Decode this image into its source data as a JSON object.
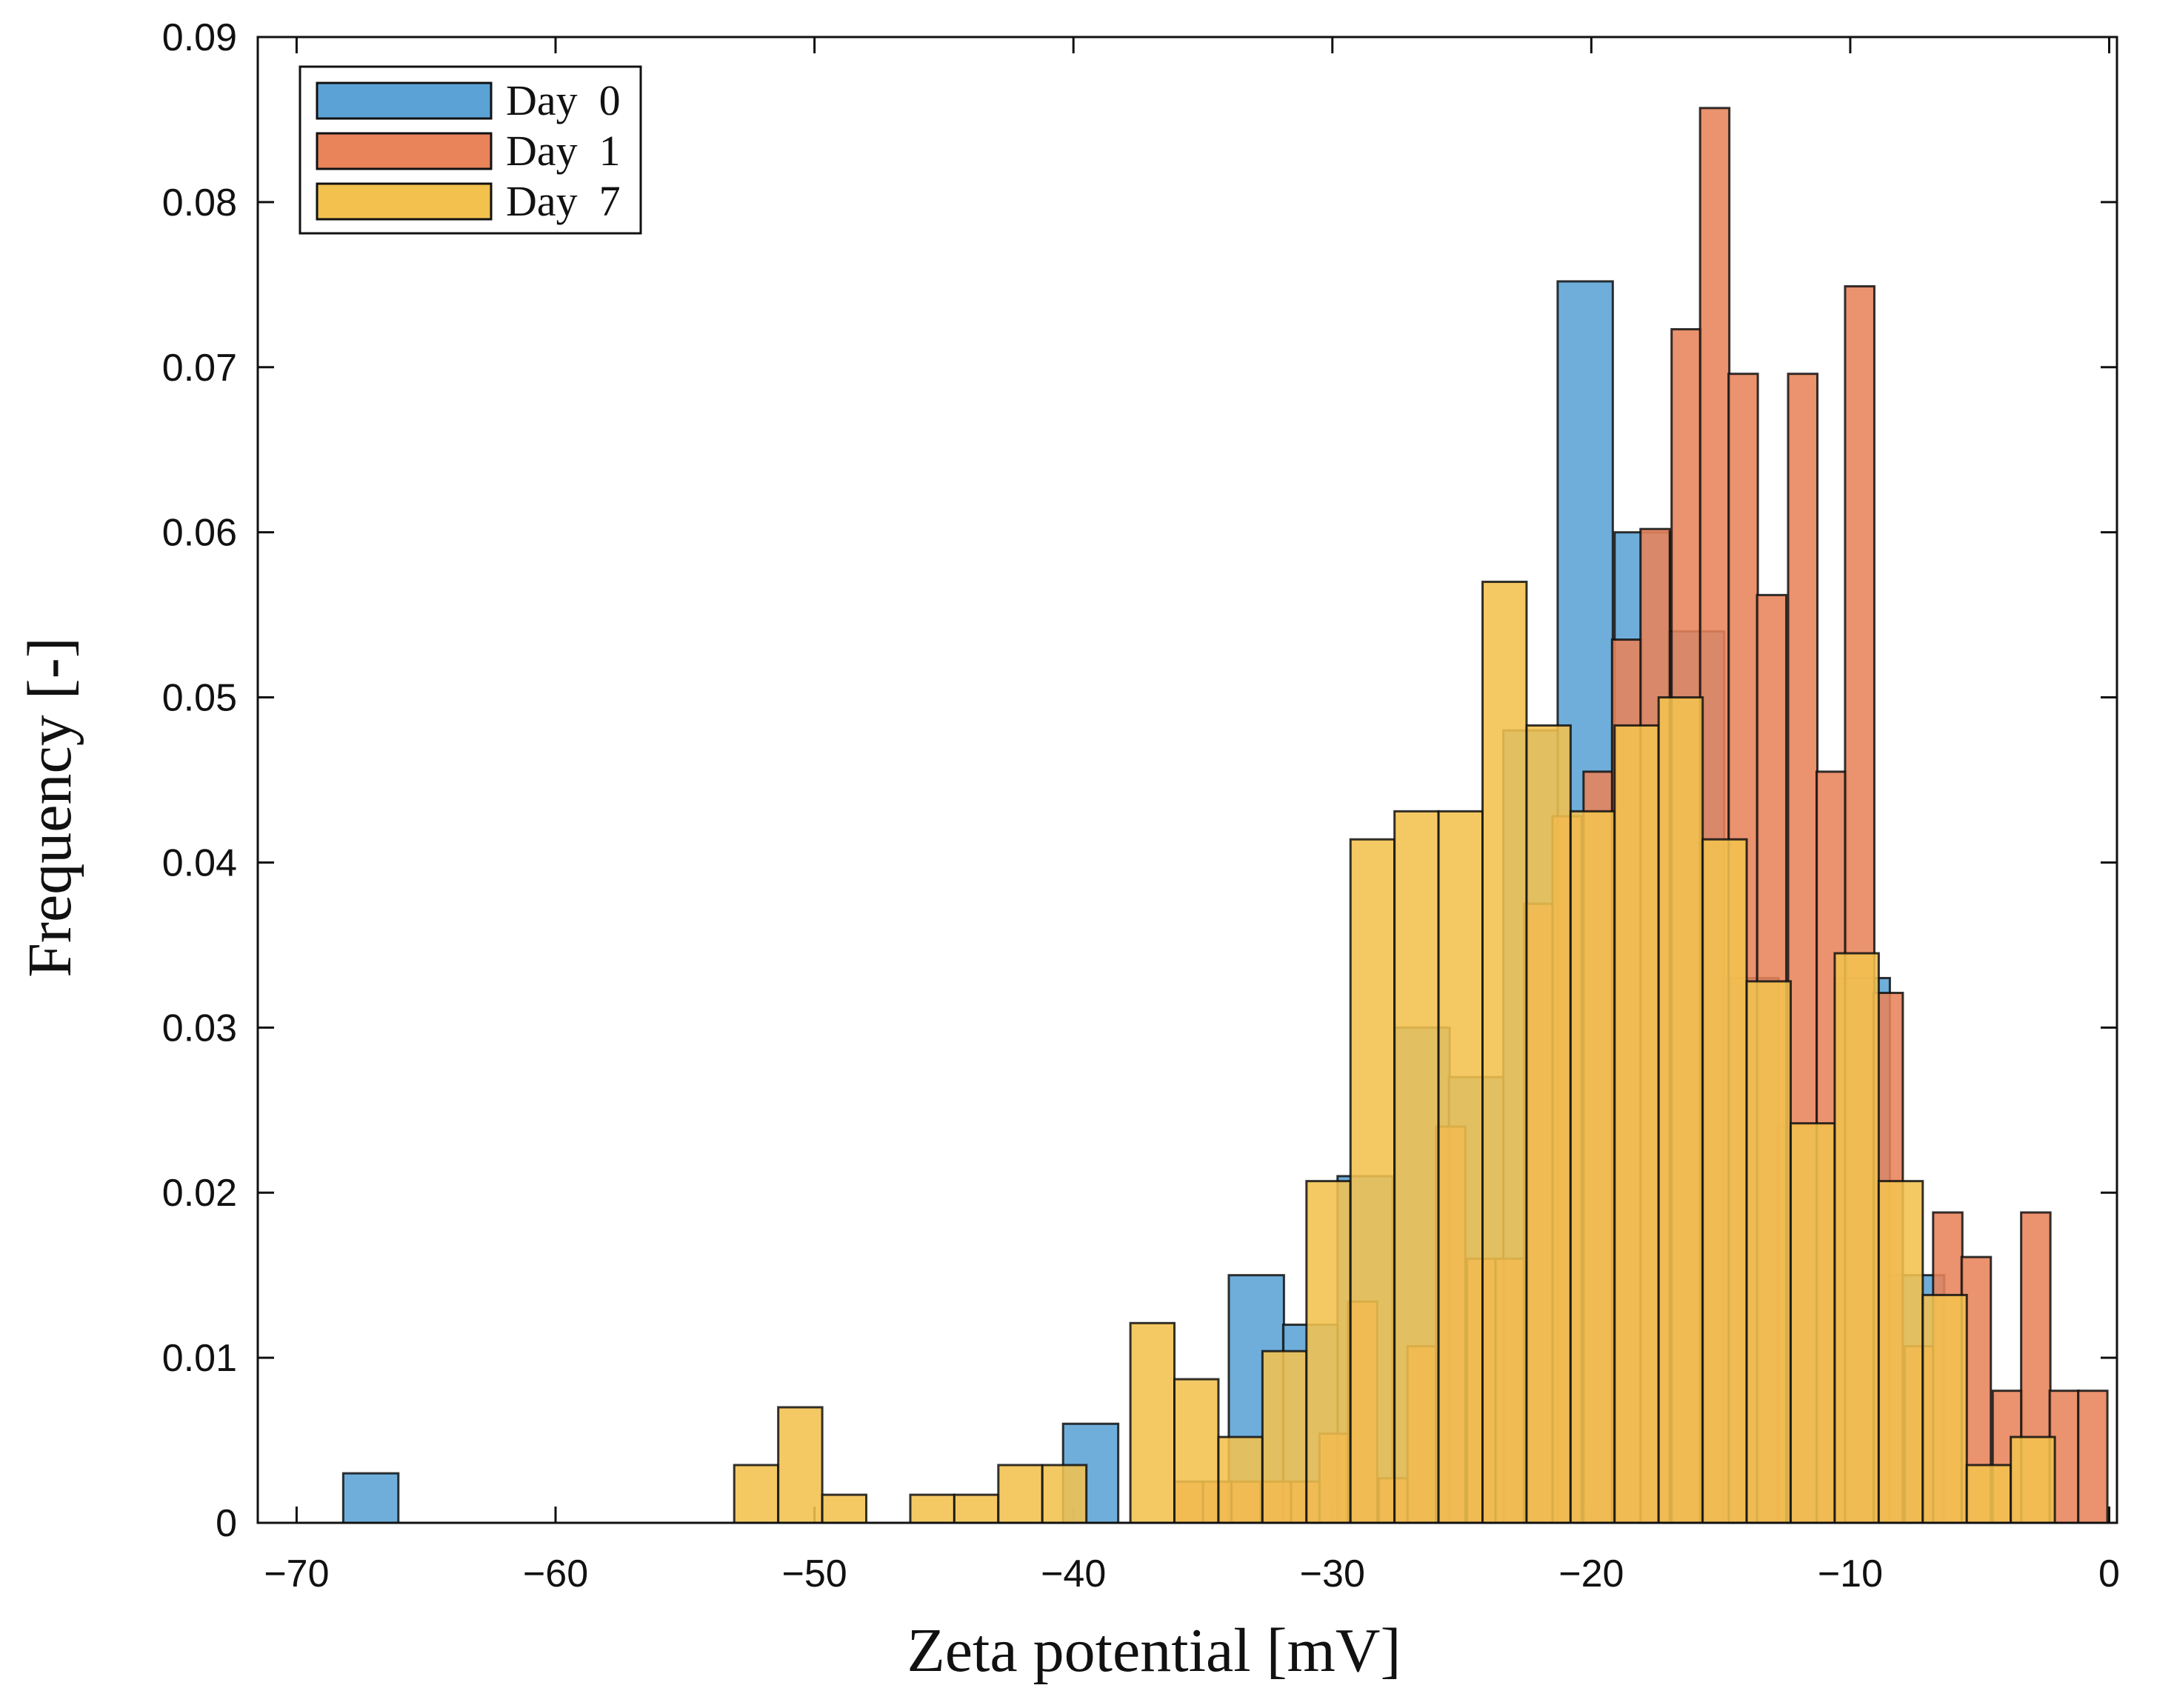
{
  "chart_data": {
    "type": "histogram",
    "xlabel": "Zeta potential [mV]",
    "ylabel": "Frequency [-]",
    "xlim": [
      -71.5,
      0.3
    ],
    "ylim": [
      0,
      0.09
    ],
    "xticks": [
      -70,
      -60,
      -50,
      -40,
      -30,
      -20,
      -10,
      0
    ],
    "xtick_labels": [
      "−70",
      "−60",
      "−50",
      "−40",
      "−30",
      "−20",
      "−10",
      "0"
    ],
    "yticks": [
      0,
      0.01,
      0.02,
      0.03,
      0.04,
      0.05,
      0.06,
      0.07,
      0.08,
      0.09
    ],
    "ytick_labels": [
      "0",
      "0.01",
      "0.02",
      "0.03",
      "0.04",
      "0.05",
      "0.06",
      "0.07",
      "0.08",
      "0.09"
    ],
    "legend_position": "top-left",
    "series": [
      {
        "name": "Day  0",
        "color": "#5BA3D6",
        "bin_width": 2.13,
        "bins": [
          {
            "start": -68.2,
            "value": 0.003
          },
          {
            "start": -40.4,
            "value": 0.006
          },
          {
            "start": -34.0,
            "value": 0.015
          },
          {
            "start": -31.9,
            "value": 0.012
          },
          {
            "start": -29.8,
            "value": 0.021
          },
          {
            "start": -27.6,
            "value": 0.03
          },
          {
            "start": -25.5,
            "value": 0.027
          },
          {
            "start": -23.4,
            "value": 0.048
          },
          {
            "start": -21.3,
            "value": 0.0752
          },
          {
            "start": -19.1,
            "value": 0.06
          },
          {
            "start": -17.0,
            "value": 0.054
          },
          {
            "start": -14.9,
            "value": 0.033
          },
          {
            "start": -12.8,
            "value": 0.024
          },
          {
            "start": -10.6,
            "value": 0.033
          },
          {
            "start": -8.5,
            "value": 0.015
          }
        ]
      },
      {
        "name": "Day  1",
        "color": "#E8835A",
        "bin_width": 1.13,
        "bins": [
          {
            "start": -36.1,
            "value": 0.0025
          },
          {
            "start": -35.0,
            "value": 0.0025
          },
          {
            "start": -33.9,
            "value": 0.0025
          },
          {
            "start": -32.7,
            "value": 0.0025
          },
          {
            "start": -31.6,
            "value": 0.0025
          },
          {
            "start": -30.5,
            "value": 0.0054
          },
          {
            "start": -29.4,
            "value": 0.0134
          },
          {
            "start": -28.2,
            "value": 0.0027
          },
          {
            "start": -27.1,
            "value": 0.0107
          },
          {
            "start": -26.0,
            "value": 0.024
          },
          {
            "start": -24.8,
            "value": 0.016
          },
          {
            "start": -23.7,
            "value": 0.016
          },
          {
            "start": -22.6,
            "value": 0.0375
          },
          {
            "start": -21.5,
            "value": 0.0428
          },
          {
            "start": -20.3,
            "value": 0.0455
          },
          {
            "start": -19.2,
            "value": 0.0535
          },
          {
            "start": -18.1,
            "value": 0.0602
          },
          {
            "start": -16.9,
            "value": 0.0723
          },
          {
            "start": -15.8,
            "value": 0.0857
          },
          {
            "start": -14.7,
            "value": 0.0696
          },
          {
            "start": -13.6,
            "value": 0.0562
          },
          {
            "start": -12.4,
            "value": 0.0696
          },
          {
            "start": -11.3,
            "value": 0.0455
          },
          {
            "start": -10.2,
            "value": 0.0749
          },
          {
            "start": -9.1,
            "value": 0.0321
          },
          {
            "start": -7.9,
            "value": 0.0107
          },
          {
            "start": -6.8,
            "value": 0.0188
          },
          {
            "start": -5.7,
            "value": 0.0161
          },
          {
            "start": -4.5,
            "value": 0.008
          },
          {
            "start": -3.4,
            "value": 0.0188
          },
          {
            "start": -2.3,
            "value": 0.008
          },
          {
            "start": -1.2,
            "value": 0.008
          }
        ]
      },
      {
        "name": "Day  7",
        "color": "#F2C14E",
        "bin_width": 1.7,
        "bins": [
          {
            "start": -53.1,
            "value": 0.0035
          },
          {
            "start": -51.4,
            "value": 0.007
          },
          {
            "start": -49.7,
            "value": 0.0017
          },
          {
            "start": -46.3,
            "value": 0.0017
          },
          {
            "start": -44.6,
            "value": 0.0017
          },
          {
            "start": -42.9,
            "value": 0.0035
          },
          {
            "start": -41.2,
            "value": 0.0035
          },
          {
            "start": -37.8,
            "value": 0.0121
          },
          {
            "start": -36.1,
            "value": 0.0087
          },
          {
            "start": -34.4,
            "value": 0.0052
          },
          {
            "start": -32.7,
            "value": 0.0104
          },
          {
            "start": -31.0,
            "value": 0.0207
          },
          {
            "start": -29.3,
            "value": 0.0414
          },
          {
            "start": -27.6,
            "value": 0.0431
          },
          {
            "start": -25.9,
            "value": 0.0431
          },
          {
            "start": -24.2,
            "value": 0.057
          },
          {
            "start": -22.5,
            "value": 0.0483
          },
          {
            "start": -20.8,
            "value": 0.0431
          },
          {
            "start": -19.1,
            "value": 0.0483
          },
          {
            "start": -17.4,
            "value": 0.05
          },
          {
            "start": -15.7,
            "value": 0.0414
          },
          {
            "start": -14.0,
            "value": 0.0328
          },
          {
            "start": -12.3,
            "value": 0.0242
          },
          {
            "start": -10.6,
            "value": 0.0345
          },
          {
            "start": -8.9,
            "value": 0.0207
          },
          {
            "start": -7.2,
            "value": 0.0138
          },
          {
            "start": -5.5,
            "value": 0.0035
          },
          {
            "start": -3.8,
            "value": 0.0052
          }
        ]
      }
    ]
  }
}
